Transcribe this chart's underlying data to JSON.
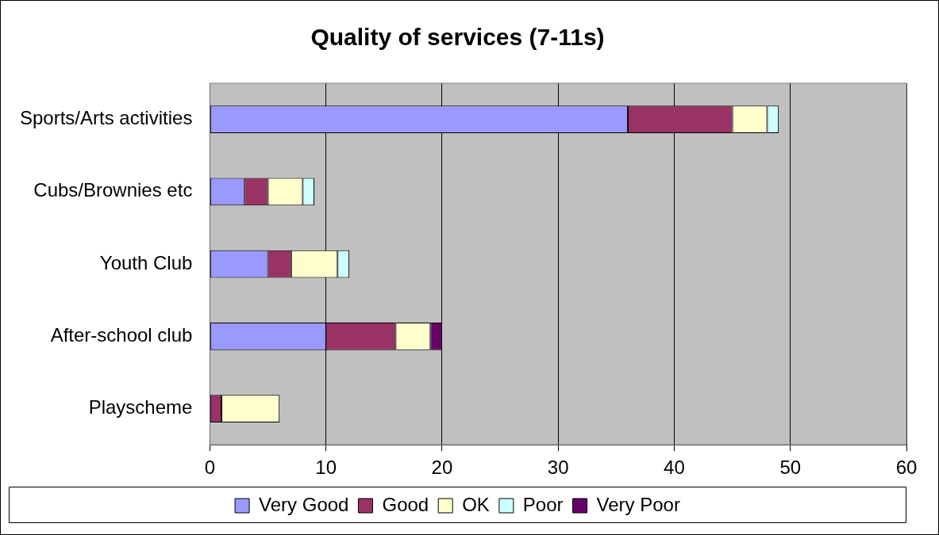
{
  "chart_data": {
    "type": "bar",
    "orientation": "horizontal",
    "stacked": true,
    "title": "Quality of services (7-11s)",
    "categories": [
      "Sports/Arts activities",
      "Cubs/Brownies etc",
      "Youth Club",
      "After-school club",
      "Playscheme"
    ],
    "series": [
      {
        "name": "Very Good",
        "color": "#9999ff",
        "values": [
          36,
          3,
          5,
          10,
          0
        ]
      },
      {
        "name": "Good",
        "color": "#993366",
        "values": [
          9,
          2,
          2,
          6,
          1
        ]
      },
      {
        "name": "OK",
        "color": "#ffffcc",
        "values": [
          3,
          3,
          4,
          3,
          5
        ]
      },
      {
        "name": "Poor",
        "color": "#ccffff",
        "values": [
          1,
          1,
          1,
          0,
          0
        ]
      },
      {
        "name": "Very Poor",
        "color": "#660066",
        "values": [
          0,
          0,
          0,
          1,
          0
        ]
      }
    ],
    "xlim": [
      0,
      60
    ],
    "xticks": [
      0,
      10,
      20,
      30,
      40,
      50,
      60
    ],
    "grid": "x",
    "legend": "bottom"
  }
}
